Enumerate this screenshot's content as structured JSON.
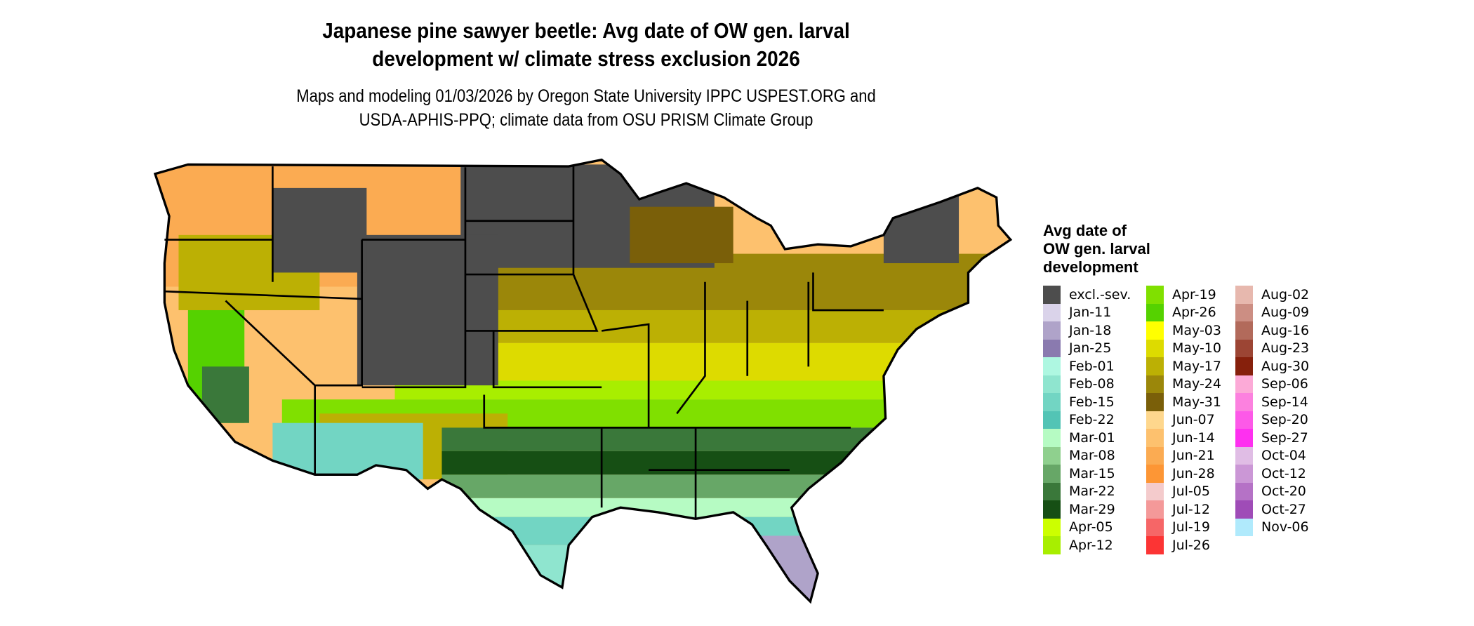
{
  "title": {
    "line1": "Japanese pine sawyer beetle: Avg date of OW gen. larval",
    "line2": "development w/ climate stress exclusion 2026"
  },
  "subtitle": {
    "line1": "Maps and modeling 01/03/2026 by Oregon State University IPPC USPEST.ORG and",
    "line2": "USDA-APHIS-PPQ; climate data from OSU PRISM Climate Group"
  },
  "legend": {
    "title_lines": [
      "Avg date of",
      "OW gen. larval",
      "development"
    ],
    "items": [
      {
        "label": "excl.-sev.",
        "color": "#4d4d4d"
      },
      {
        "label": "Jan-11",
        "color": "#dad3ea"
      },
      {
        "label": "Jan-18",
        "color": "#afa3c9"
      },
      {
        "label": "Jan-25",
        "color": "#8a7aaf"
      },
      {
        "label": "Feb-01",
        "color": "#aef7e1"
      },
      {
        "label": "Feb-08",
        "color": "#8fe5cf"
      },
      {
        "label": "Feb-15",
        "color": "#72d5c3"
      },
      {
        "label": "Feb-22",
        "color": "#53c4b5"
      },
      {
        "label": "Mar-01",
        "color": "#b6fbc3"
      },
      {
        "label": "Mar-08",
        "color": "#8fd08e"
      },
      {
        "label": "Mar-15",
        "color": "#67a767"
      },
      {
        "label": "Mar-22",
        "color": "#3a783a"
      },
      {
        "label": "Mar-29",
        "color": "#164f14"
      },
      {
        "label": "Apr-05",
        "color": "#ccff00"
      },
      {
        "label": "Apr-12",
        "color": "#a8ee00"
      },
      {
        "label": "Apr-19",
        "color": "#80e000"
      },
      {
        "label": "Apr-26",
        "color": "#55d200"
      },
      {
        "label": "May-03",
        "color": "#ffff00"
      },
      {
        "label": "May-10",
        "color": "#dddb00"
      },
      {
        "label": "May-17",
        "color": "#bcb004"
      },
      {
        "label": "May-24",
        "color": "#9b870a"
      },
      {
        "label": "May-31",
        "color": "#7a5f09"
      },
      {
        "label": "Jun-07",
        "color": "#fed78d"
      },
      {
        "label": "Jun-14",
        "color": "#fdc16e"
      },
      {
        "label": "Jun-21",
        "color": "#fbab52"
      },
      {
        "label": "Jun-28",
        "color": "#fd9635"
      },
      {
        "label": "Jul-05",
        "color": "#f4cbcc"
      },
      {
        "label": "Jul-12",
        "color": "#f49999"
      },
      {
        "label": "Jul-19",
        "color": "#f66667"
      },
      {
        "label": "Jul-26",
        "color": "#fc3434"
      },
      {
        "label": "Aug-02",
        "color": "#e7b8ae"
      },
      {
        "label": "Aug-09",
        "color": "#cc8e83"
      },
      {
        "label": "Aug-16",
        "color": "#b26a5b"
      },
      {
        "label": "Aug-23",
        "color": "#9c4534"
      },
      {
        "label": "Aug-30",
        "color": "#86200c"
      },
      {
        "label": "Sep-06",
        "color": "#fcaad7"
      },
      {
        "label": "Sep-14",
        "color": "#fc81df"
      },
      {
        "label": "Sep-20",
        "color": "#fd59e8"
      },
      {
        "label": "Sep-27",
        "color": "#fe30f0"
      },
      {
        "label": "Oct-04",
        "color": "#e0bde5"
      },
      {
        "label": "Oct-12",
        "color": "#cb97d6"
      },
      {
        "label": "Oct-20",
        "color": "#b572c6"
      },
      {
        "label": "Oct-27",
        "color": "#9f4cb7"
      },
      {
        "label": "Nov-06",
        "color": "#b0eafc"
      }
    ]
  }
}
